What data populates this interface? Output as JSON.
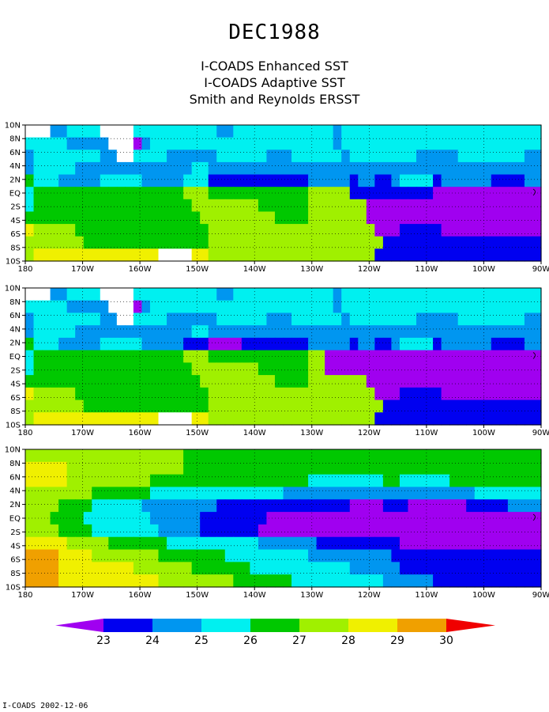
{
  "title": "DEC1988",
  "subtitles": [
    "I-COADS Enhanced SST",
    "I-COADS Adaptive SST",
    "Smith and Reynolds ERSST"
  ],
  "footer": "I-COADS 2002-12-06",
  "colors": {
    "scale": [
      "#a000f0",
      "#0000f0",
      "#0096f0",
      "#00f0f0",
      "#00c800",
      "#a0f000",
      "#f0f000",
      "#f0a000",
      "#f00000"
    ],
    "missing": "#ffffff",
    "grid": "#000000"
  },
  "chart_data": [
    {
      "type": "heatmap",
      "panel": "I-COADS Enhanced SST",
      "x_ticks": [
        "180",
        "170W",
        "160W",
        "150W",
        "140W",
        "130W",
        "120W",
        "110W",
        "100W",
        "90W"
      ],
      "y_ticks": [
        "10N",
        "8N",
        "6N",
        "4N",
        "2N",
        "EQ",
        "2S",
        "4S",
        "6S",
        "8S",
        "10S"
      ],
      "rows_north_to_south": [
        "___CCDDDD____DDDDDDDDDDCCDDDDDDDDDDDDCDDDDDDDDDDDDDDDDDDDDDDDD",
        "DDDDDCCCCC___ACDDDDDDDDDDDDDDDDDDDDDDCDDDDDDDDDDDDDDDDDDDDDDDD",
        "CDDDDDDDDCC__DDDDCCCCCCDDDDDDCCCDDDDDDCDDDDDDDDCCCCCDDDDDDDDCC",
        "CDDDDDCCCCCCCCCCCCCCDDCCCCCCCCCCCCCCCCCCCCCCCCCCCCCCCCCCCCCCCC",
        "EDDDCCCCCDDDDDCCCCCDDDBBBBBBBBBBBBCCCCCBCCBBCDDDDBCCCCCCBBBBCC",
        "DEEEEEEEEEEEEEEEEEEFFFEEEEEEEEEEEEFFFFFBBBBBBBBBBAAAAAAAAAAAAA",
        "DEEEEEEEEEEEEEEEEEEEFFFFFFFFEEEEEEFFFFFFFAAAAAAAAAAAAAAAAAAAAA",
        "EEEEEEEEEEEEEEEEEEEEEFFFFFFFFFEEEEFFFFFFFAAAAAAAAAAAAAAAAAAAAA",
        "GFFFFFEEEEEEEEEEEEEEEEFFFFFFFFFFFFFFFFFFFFAAABBBBBAAAAAAAAAAAA",
        "FFFFFFFEEEEEEEEEEEEEEEFFFFFFFFFFFFFFFFFFFFFBBBBBBBBBBBBBBBBBBB",
        "FGGGGGGGGGGGGGGG____GGFFFFFFFFFFFFFFFFFFFFBBBBBBBBBBBBBBBBBBBB"
      ]
    },
    {
      "type": "heatmap",
      "panel": "I-COADS Adaptive SST",
      "x_ticks": [
        "180",
        "170W",
        "160W",
        "150W",
        "140W",
        "130W",
        "120W",
        "110W",
        "100W",
        "90W"
      ],
      "y_ticks": [
        "10N",
        "8N",
        "6N",
        "4N",
        "2N",
        "EQ",
        "2S",
        "4S",
        "6S",
        "8S",
        "10S"
      ],
      "rows_north_to_south": [
        "___CCDDDD____DDDDDDDDDDCCDDDDDDDDDDDDCDDDDDDDDDDDDDDDDDDDDDDDD",
        "DDDDDCCCCC___ACDDDDDDDDDDDDDDDDDDDDDDCDDDDDDDDDDDDDDDDDDDDDDDD",
        "CDDDDDDDDCC__DDDDCCCCCCDDDDDDCCCDDDDDDCDDDDDDDDCCCCCDDDDDDDDCC",
        "CDDDDDCCCCCCCCCCCCCCDDCCCCCCCCCCCCCCCCCCCCCCCCCCCCCCCCCCCCCCCC",
        "EDDDCCCCCDDDDDCCCCCBBBAAAABBBBBBBBCCCCCBCCBBCDDDDBCCCCCCBBBBCC",
        "DEEEEEEEEEEEEEEEEEEFFFEEEEEEEEEEEEFFAAAAAAAAAAAAAAAAAAAAAAAAAA",
        "DEEEEEEEEEEEEEEEEEEEFFFFFFFFEEEEEEFFAAAAAAAAAAAAAAAAAAAAAAAAAA",
        "EEEEEEEEEEEEEEEEEEEEEFFFFFFFFFEEEEFFFFFFFAAAAAAAAAAAAAAAAAAAAA",
        "GFFFFFEEEEEEEEEEEEEEEEFFFFFFFFFFFFFFFFFFFFAAABBBBBAAAAAAAAAAAA",
        "FFFFFFFEEEEEEEEEEEEEEEFFFFFFFFFFFFFFFFFFFFFBBBBBBBBBBBBBBBBBBB",
        "FGGGGGGGGGGGGGGG____GGFFFFFFFFFFFFFFFFFFFFBBBBBBBBBBBBBBBBBBBB"
      ]
    },
    {
      "type": "heatmap",
      "panel": "Smith and Reynolds ERSST",
      "x_ticks": [
        "180",
        "170W",
        "160W",
        "150W",
        "140W",
        "130W",
        "120W",
        "110W",
        "100W",
        "90W"
      ],
      "y_ticks": [
        "10N",
        "8N",
        "6N",
        "4N",
        "2N",
        "EQ",
        "2S",
        "4S",
        "6S",
        "8S",
        "10S"
      ],
      "rows_north_to_south": [
        "FFFFFFFFFFFFFFFFFFFEEEEEEEEEEEEEEEEEEEEEEEEEEEEEEEEEEEEEEEEEEE",
        "GGGGGFFFFFFFFFFFFFFEEEEEEEEEEEEEEEEEEEEEEEEEEEEEEEEEEEEEEEEEEE",
        "GGGGGFFFFFFFFFFEEEEEEEEEEEEEEEEEEEDDDDDDDDDEEDDDDDDEEEEEEEEEEE",
        "FFFFFFFFEEEEEEEDDDDDDDDDDDDDDDDCCCCCCCCCCCCCCCCCCCCCCCDDDDDDDD",
        "FFFFEEEEDDDDDDCCCCCCCCCBBBBBBBBBBBBBBBBAAAABBBAAAAAAABBBBBCCCC",
        "FFFEEEEDDDDDDDDCCCCCCBBBBBBBBAAAAAAAAAAAAAAAAAAAAAAAAAAAAAAAAA",
        "FFFFEEEEDDDDDDDDCCCCCBBBBBBBAAAAAAAAAAAAAAAAAAAAAAAAAAAAAAAAAA",
        "GGGGGFFFFFEEEEEEEDDDDDDDDDDDCCCCCCCBBBBBBBBBBAAAAAAAAAAAAAAAAA",
        "HHHHGGGGFFFFFFFFEEEEEEEEDDDDDDDDDDCCCCCCCCCCBBBBBBBBBBBBBBBBBB",
        "HHHHGGGGGGGGGFFFFFFFEEEEEEEDDDDDDDDDDDDCCCCCCBBBBBBBBBBBBBBBBB",
        "HHHHGGGGGGGGGGGGFFFFFFFFFEEEEEEEDDDDDDDDDDDCCCCCCBBBBBBBBBBBBB"
      ]
    },
    {
      "type": "colorbar",
      "labels": [
        "23",
        "24",
        "25",
        "26",
        "27",
        "28",
        "29",
        "30"
      ]
    }
  ]
}
